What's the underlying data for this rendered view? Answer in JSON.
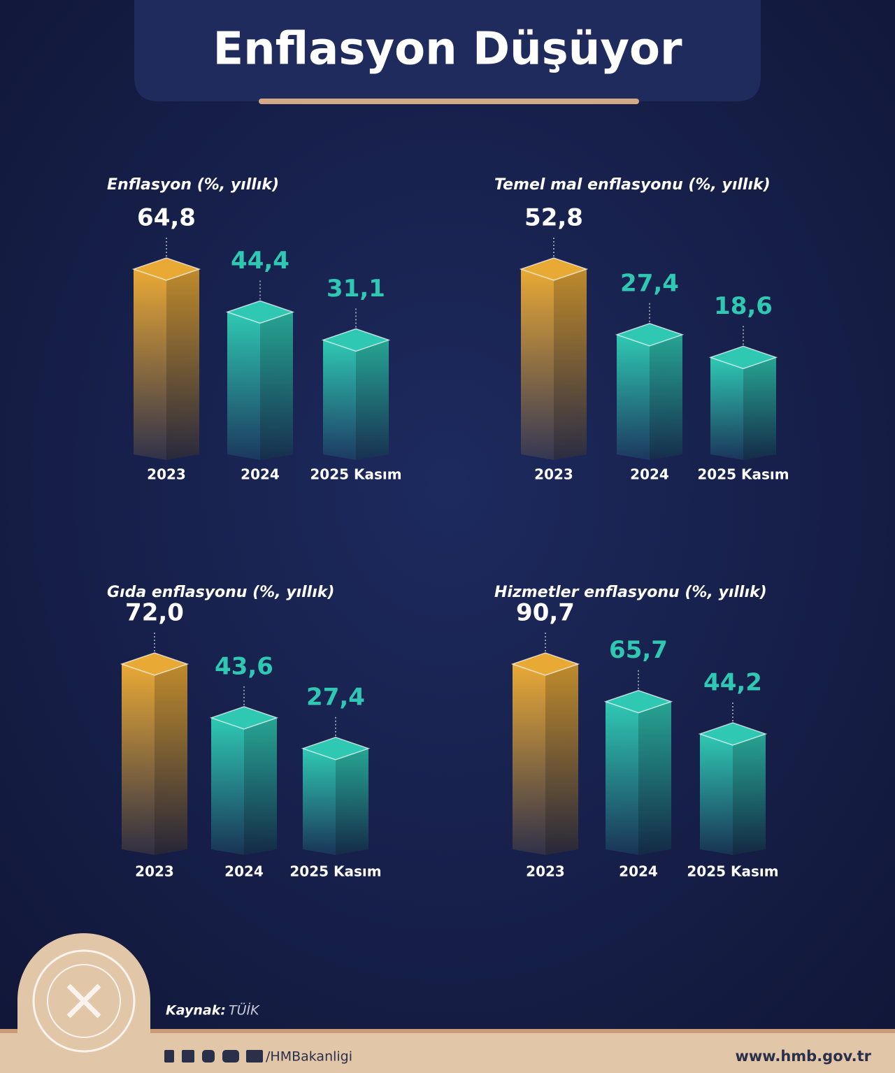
{
  "title": "Enflasyon Düşüyor",
  "chart_data": [
    {
      "type": "bar",
      "title": "Enflasyon (%, yıllık)",
      "categories": [
        "2023",
        "2024",
        "2025 Kasım"
      ],
      "values": [
        64.8,
        44.4,
        31.1
      ],
      "value_labels": [
        "64,8",
        "44,4",
        "31,1"
      ],
      "colors": [
        "#e9a935",
        "#2fc9b3",
        "#2fc9b3"
      ]
    },
    {
      "type": "bar",
      "title": "Temel mal enflasyonu (%, yıllık)",
      "categories": [
        "2023",
        "2024",
        "2025 Kasım"
      ],
      "values": [
        52.8,
        27.4,
        18.6
      ],
      "value_labels": [
        "52,8",
        "27,4",
        "18,6"
      ],
      "colors": [
        "#e9a935",
        "#2fc9b3",
        "#2fc9b3"
      ]
    },
    {
      "type": "bar",
      "title": "Gıda enflasyonu (%, yıllık)",
      "categories": [
        "2023",
        "2024",
        "2025 Kasım"
      ],
      "values": [
        72.0,
        43.6,
        27.4
      ],
      "value_labels": [
        "72,0",
        "43,6",
        "27,4"
      ],
      "colors": [
        "#e9a935",
        "#2fc9b3",
        "#2fc9b3"
      ]
    },
    {
      "type": "bar",
      "title": "Hizmetler enflasyonu (%, yıllık)",
      "categories": [
        "2023",
        "2024",
        "2025 Kasım"
      ],
      "values": [
        90.7,
        65.7,
        44.2
      ],
      "value_labels": [
        "90,7",
        "65,7",
        "44,2"
      ],
      "colors": [
        "#e9a935",
        "#2fc9b3",
        "#2fc9b3"
      ]
    }
  ],
  "source_label": "Kaynak:",
  "source": "TÜİK",
  "social_handle": "/HMBakanligi",
  "website": "www.hmb.gov.tr"
}
